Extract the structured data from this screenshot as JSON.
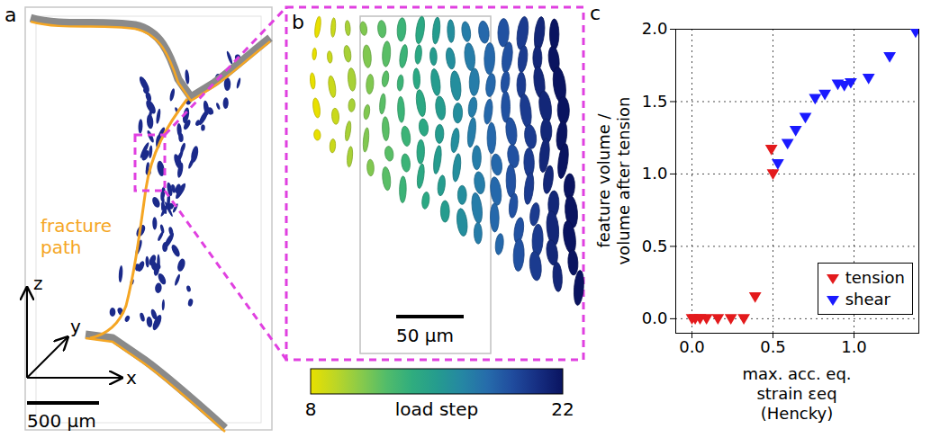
{
  "chart_data": {
    "type": "scatter",
    "panel_label": "c",
    "x_label": [
      "max. acc. eq.",
      "strain εeq",
      "(Hencky)"
    ],
    "y_label": [
      "feature volume /",
      "volume after tension"
    ],
    "xlim": [
      -0.1,
      1.4
    ],
    "ylim": [
      -0.1,
      2.0
    ],
    "xticks": [
      {
        "value": 0,
        "label": "0.0"
      },
      {
        "value": 0.5,
        "label": "0.5"
      },
      {
        "value": 1,
        "label": "1.0"
      }
    ],
    "yticks": [
      {
        "value": 0,
        "label": "0.0"
      },
      {
        "value": 0.5,
        "label": "0.5"
      },
      {
        "value": 1,
        "label": "1.0"
      },
      {
        "value": 1.5,
        "label": "1.5"
      },
      {
        "value": 2,
        "label": "2.0"
      }
    ],
    "grid": true,
    "legend": "lower right",
    "marker": "triangle-down",
    "series": [
      {
        "name": "tension",
        "color": "#e31a1c",
        "x": [
          0.0,
          0.02,
          0.05,
          0.09,
          0.16,
          0.24,
          0.32,
          0.39,
          0.49,
          0.5
        ],
        "values": [
          0,
          0,
          0,
          0,
          0,
          0,
          0,
          0.15,
          1.17,
          1.0
        ]
      },
      {
        "name": "shear",
        "color": "#1a1aff",
        "x": [
          0.53,
          0.59,
          0.64,
          0.7,
          0.76,
          0.82,
          0.9,
          0.94,
          0.98,
          1.09,
          1.22,
          1.38
        ],
        "values": [
          1.07,
          1.21,
          1.3,
          1.39,
          1.52,
          1.55,
          1.62,
          1.61,
          1.63,
          1.66,
          1.81,
          1.98
        ]
      }
    ]
  },
  "panel_a": {
    "panel_label": "a",
    "annotation": "fracture path",
    "axes": [
      "x",
      "y",
      "z"
    ],
    "scale_bar": "500 µm"
  },
  "panel_b": {
    "panel_label": "b",
    "scale_bar": "50 µm",
    "colorbar": {
      "label": "load step",
      "range": [
        8,
        22
      ],
      "ticks": [
        8,
        22
      ]
    }
  }
}
